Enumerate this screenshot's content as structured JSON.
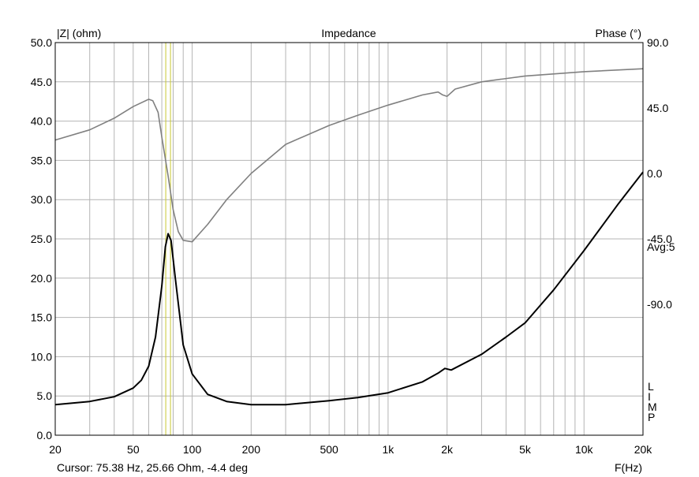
{
  "chart_data": {
    "type": "line",
    "title": "Impedance",
    "ylabel_left": "|Z| (ohm)",
    "ylabel_right": "Phase (°)",
    "xlabel": "F(Hz)",
    "x_scale": "log",
    "xlim": [
      20,
      20000
    ],
    "ylim_left": [
      0,
      50
    ],
    "ylim_right": [
      -180,
      90
    ],
    "grid": true,
    "x_ticks": [
      "20",
      "50",
      "100",
      "200",
      "500",
      "1k",
      "2k",
      "5k",
      "10k",
      "20k"
    ],
    "y_left_ticks": [
      "0.0",
      "5.0",
      "10.0",
      "15.0",
      "20.0",
      "25.0",
      "30.0",
      "35.0",
      "40.0",
      "45.0",
      "50.0"
    ],
    "y_right_ticks": [
      "90.0",
      "45.0",
      "0.0",
      "-45.0",
      "-90.0"
    ],
    "avg_label": "Avg:5",
    "legend_letters": [
      "L",
      "I",
      "M",
      "P"
    ],
    "cursor": {
      "frequency_hz": 75.38,
      "text": "Cursor: 75.38 Hz, 25.66 Ohm, -4.4 deg"
    },
    "series": [
      {
        "name": "Impedance",
        "axis": "left",
        "color": "#000000",
        "x": [
          20,
          30,
          40,
          50,
          55,
          60,
          65,
          70,
          73,
          75.38,
          78,
          82,
          90,
          100,
          120,
          150,
          200,
          300,
          500,
          700,
          1000,
          1500,
          1800,
          1950,
          2100,
          3000,
          4000,
          5000,
          7000,
          10000,
          15000,
          20000
        ],
        "y": [
          3.9,
          4.3,
          4.9,
          6.0,
          7.0,
          8.8,
          12.5,
          19.0,
          24.0,
          25.66,
          24.8,
          20.0,
          11.5,
          7.8,
          5.2,
          4.3,
          3.9,
          3.9,
          4.4,
          4.8,
          5.4,
          6.8,
          7.9,
          8.5,
          8.3,
          10.3,
          12.5,
          14.3,
          18.5,
          23.5,
          29.5,
          33.5
        ]
      },
      {
        "name": "Phase",
        "axis": "right",
        "color": "#808080",
        "x": [
          20,
          30,
          40,
          50,
          60,
          63,
          67,
          70,
          75,
          80,
          85,
          90,
          100,
          120,
          150,
          200,
          300,
          500,
          700,
          1000,
          1500,
          1800,
          1900,
          2000,
          2200,
          3000,
          5000,
          10000,
          20000
        ],
        "y": [
          23,
          30,
          38,
          46,
          51,
          50,
          42,
          25,
          0,
          -25,
          -40,
          -46,
          -47,
          -35,
          -18,
          0,
          20,
          33,
          40,
          47,
          54,
          56,
          54,
          53,
          58,
          63,
          67,
          70,
          72
        ]
      }
    ]
  }
}
